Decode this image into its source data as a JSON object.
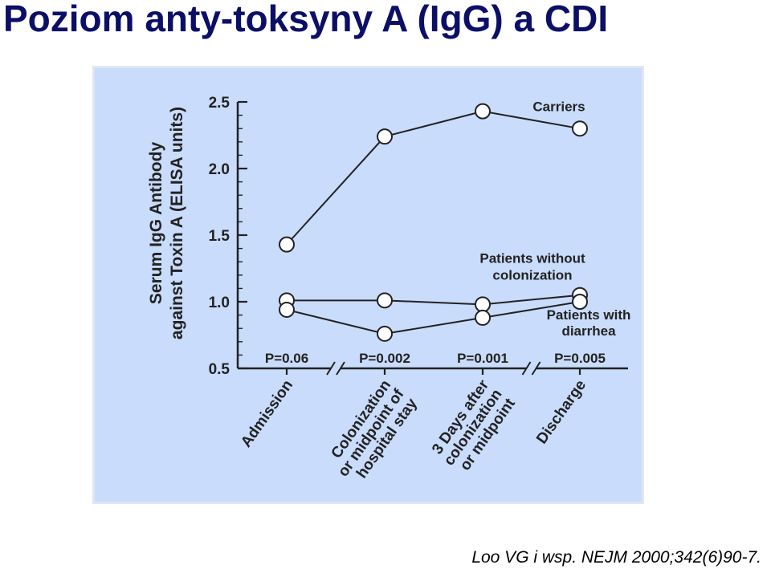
{
  "slide": {
    "title": "Poziom anty-toksyny A (IgG) a  CDI",
    "citation": "Loo VG i wsp. NEJM 2000;342(6)90-7."
  },
  "colors": {
    "title": "#0b0f66",
    "panel_background": "#c9dcfb",
    "line": "#222222",
    "marker_fill": "#ffffff"
  },
  "chart_data": {
    "type": "line",
    "title": "",
    "ylabel": [
      "Serum IgG Antibody",
      "against Toxin A (ELISA units)"
    ],
    "xlabel": "",
    "ylim": [
      0.5,
      2.5
    ],
    "yticks": [
      0.5,
      1.0,
      1.5,
      2.0,
      2.5
    ],
    "ytick_labels": [
      "0.5",
      "1.0",
      "1.5",
      "2.0",
      "2.5"
    ],
    "grid": false,
    "categories": [
      [
        "Admission"
      ],
      [
        "Colonization",
        "or midpoint of",
        "hospital stay"
      ],
      [
        "3 Days after",
        "colonization",
        "or midpoint"
      ],
      [
        "Discharge"
      ]
    ],
    "p_values": [
      "P=0.06",
      "P=0.002",
      "P=0.001",
      "P=0.005"
    ],
    "series": [
      {
        "name": [
          "Carriers"
        ],
        "values": [
          1.43,
          2.24,
          2.43,
          2.3
        ]
      },
      {
        "name": [
          "Patients without",
          "colonization"
        ],
        "values": [
          1.01,
          1.01,
          0.98,
          1.05
        ]
      },
      {
        "name": [
          "Patients with",
          "diarrhea"
        ],
        "values": [
          0.94,
          0.76,
          0.88,
          1.0
        ]
      }
    ],
    "axis_breaks": "between Admission and Colonization, and between 3 Days after and Discharge"
  }
}
